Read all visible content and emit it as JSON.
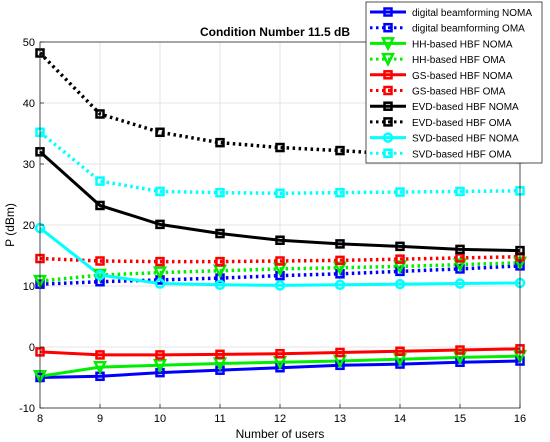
{
  "chart_data": {
    "type": "line",
    "title": "Condition Number 11.5 dB",
    "xlabel": "Number of users",
    "ylabel": "P (dBm)",
    "xlim": [
      8,
      16
    ],
    "ylim": [
      -10,
      50
    ],
    "xticks": [
      "8",
      "9",
      "10",
      "11",
      "12",
      "13",
      "14",
      "15",
      "16"
    ],
    "yticks": [
      "-10",
      "0",
      "10",
      "20",
      "30",
      "40",
      "50"
    ],
    "grid": true,
    "legend_position": "top-right",
    "x": [
      8,
      9,
      10,
      11,
      12,
      13,
      14,
      15,
      16
    ],
    "series": [
      {
        "name": "digital beamforming NOMA",
        "color": "#0000ff",
        "dash": "solid",
        "marker": "square",
        "values": [
          -5.0,
          -4.8,
          -4.2,
          -3.8,
          -3.4,
          -3.0,
          -2.8,
          -2.5,
          -2.3
        ]
      },
      {
        "name": "digital beamforming OMA",
        "color": "#0000ff",
        "dash": "dotted",
        "marker": "square",
        "values": [
          10.3,
          10.7,
          11.0,
          11.3,
          11.7,
          12.0,
          12.4,
          12.8,
          13.3
        ]
      },
      {
        "name": "HH-based HBF NOMA",
        "color": "#00ee00",
        "dash": "solid",
        "marker": "triangle-down",
        "values": [
          -4.8,
          -3.3,
          -3.0,
          -2.7,
          -2.5,
          -2.3,
          -2.0,
          -1.7,
          -1.5
        ]
      },
      {
        "name": "HH-based HBF OMA",
        "color": "#00ee00",
        "dash": "dotted",
        "marker": "triangle-down",
        "values": [
          10.8,
          11.8,
          12.2,
          12.5,
          12.8,
          13.0,
          13.2,
          13.5,
          13.8
        ]
      },
      {
        "name": "GS-based HBF NOMA",
        "color": "#ff0000",
        "dash": "solid",
        "marker": "square",
        "values": [
          -0.8,
          -1.3,
          -1.3,
          -1.2,
          -1.1,
          -0.9,
          -0.7,
          -0.5,
          -0.3
        ]
      },
      {
        "name": "GS-based HBF OMA",
        "color": "#ff0000",
        "dash": "dotted",
        "marker": "square",
        "values": [
          14.5,
          14.1,
          14.0,
          14.0,
          14.1,
          14.2,
          14.4,
          14.6,
          14.8
        ]
      },
      {
        "name": "EVD-based HBF NOMA",
        "color": "#000000",
        "dash": "solid",
        "marker": "square",
        "values": [
          32.0,
          23.2,
          20.1,
          18.6,
          17.5,
          16.9,
          16.5,
          16.0,
          15.8
        ]
      },
      {
        "name": "EVD-based HBF OMA",
        "color": "#000000",
        "dash": "dotted",
        "marker": "square",
        "values": [
          48.2,
          38.2,
          35.2,
          33.5,
          32.7,
          32.2,
          31.6,
          31.3,
          30.9
        ]
      },
      {
        "name": "SVD-based HBF NOMA",
        "color": "#00ffff",
        "dash": "solid",
        "marker": "circle",
        "values": [
          19.5,
          11.8,
          10.4,
          10.2,
          10.1,
          10.2,
          10.3,
          10.4,
          10.5
        ]
      },
      {
        "name": "SVD-based HBF OMA",
        "color": "#00ffff",
        "dash": "dotted",
        "marker": "square",
        "values": [
          35.2,
          27.2,
          25.5,
          25.3,
          25.2,
          25.3,
          25.4,
          25.5,
          25.6
        ]
      }
    ]
  }
}
